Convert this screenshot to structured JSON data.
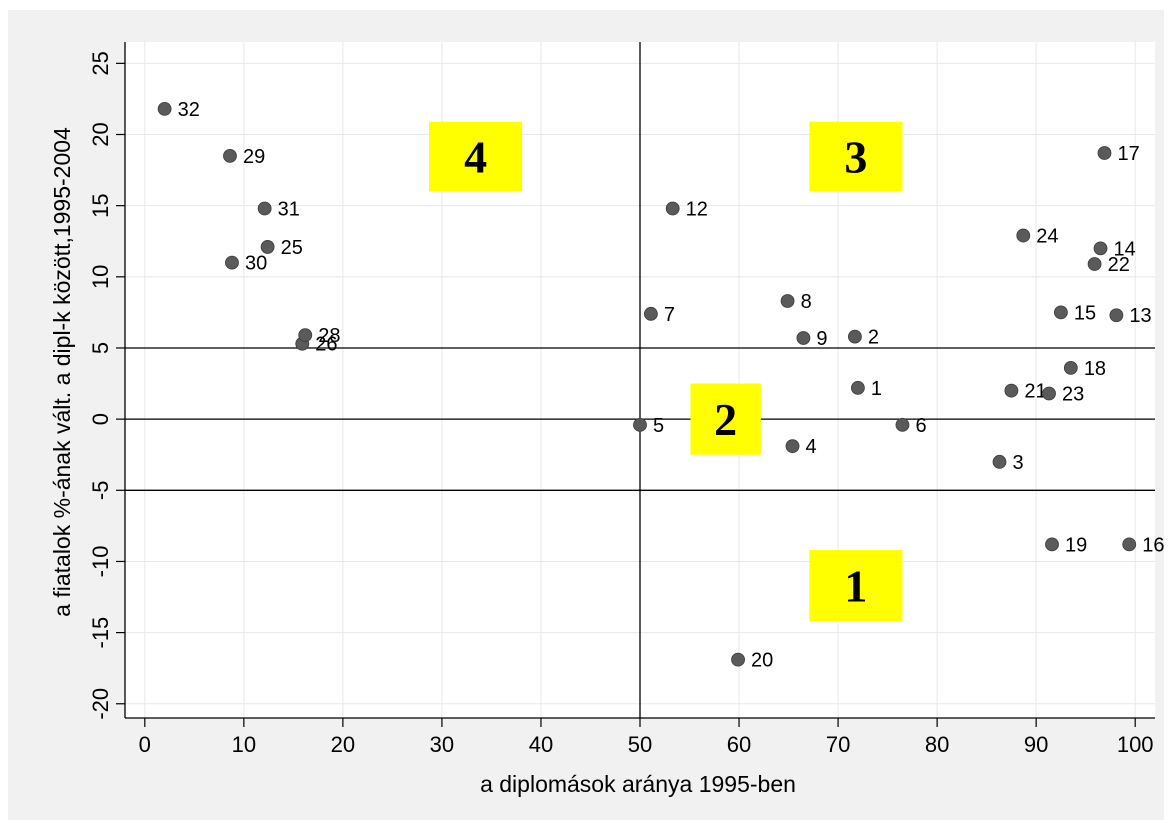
{
  "chart_data": {
    "type": "scatter",
    "title": "",
    "xlabel": "a diplomások aránya 1995-ben",
    "ylabel": "a fiatalok %-ának vált. a dipl-k között,1995-2004",
    "xlim": [
      -2,
      102
    ],
    "ylim": [
      -21,
      26.5
    ],
    "x_ticks": [
      0,
      10,
      20,
      30,
      40,
      50,
      60,
      70,
      80,
      90,
      100
    ],
    "y_ticks": [
      -20,
      -15,
      -10,
      -5,
      0,
      5,
      10,
      15,
      20,
      25
    ],
    "grid": true,
    "reference_lines": {
      "x": [
        50
      ],
      "y": [
        -5,
        0,
        5
      ]
    },
    "point_color": "#5a5a5a",
    "points": [
      {
        "label": "1",
        "x": 72,
        "y": 2.2
      },
      {
        "label": "2",
        "x": 71.7,
        "y": 5.8
      },
      {
        "label": "3",
        "x": 86.3,
        "y": -3
      },
      {
        "label": "4",
        "x": 65.4,
        "y": -1.9
      },
      {
        "label": "5",
        "x": 50,
        "y": -0.4
      },
      {
        "label": "6",
        "x": 76.5,
        "y": -0.4
      },
      {
        "label": "7",
        "x": 51.1,
        "y": 7.4
      },
      {
        "label": "8",
        "x": 64.9,
        "y": 8.3
      },
      {
        "label": "9",
        "x": 66.5,
        "y": 5.7
      },
      {
        "label": "12",
        "x": 53.3,
        "y": 14.8
      },
      {
        "label": "13",
        "x": 98.1,
        "y": 7.3
      },
      {
        "label": "14",
        "x": 96.5,
        "y": 12
      },
      {
        "label": "15",
        "x": 92.5,
        "y": 7.5
      },
      {
        "label": "16",
        "x": 99.4,
        "y": -8.8
      },
      {
        "label": "17",
        "x": 96.9,
        "y": 18.7
      },
      {
        "label": "18",
        "x": 93.5,
        "y": 3.6
      },
      {
        "label": "19",
        "x": 91.6,
        "y": -8.8
      },
      {
        "label": "20",
        "x": 59.9,
        "y": -16.9
      },
      {
        "label": "21",
        "x": 87.5,
        "y": 2
      },
      {
        "label": "22",
        "x": 95.9,
        "y": 10.9
      },
      {
        "label": "23",
        "x": 91.3,
        "y": 1.8
      },
      {
        "label": "24",
        "x": 88.7,
        "y": 12.9
      },
      {
        "label": "25",
        "x": 12.4,
        "y": 12.1
      },
      {
        "label": "26",
        "x": 15.9,
        "y": 5.3
      },
      {
        "label": "28",
        "x": 16.2,
        "y": 5.9
      },
      {
        "label": "29",
        "x": 8.6,
        "y": 18.5
      },
      {
        "label": "30",
        "x": 8.8,
        "y": 11
      },
      {
        "label": "31",
        "x": 12.1,
        "y": 14.8
      },
      {
        "label": "32",
        "x": 2,
        "y": 21.8
      }
    ],
    "quadrant_boxes": [
      {
        "text": "4",
        "color": "#ffff00",
        "x0": 28.7,
        "x1": 38.1,
        "y0": 16,
        "y1": 20.9
      },
      {
        "text": "3",
        "color": "#ffff00",
        "x0": 67.1,
        "x1": 76.5,
        "y0": 16,
        "y1": 20.9
      },
      {
        "text": "2",
        "color": "#ffff00",
        "x0": 55.1,
        "x1": 62.2,
        "y0": -2.5,
        "y1": 2.5
      },
      {
        "text": "1",
        "color": "#ffff00",
        "x0": 67.1,
        "x1": 76.5,
        "y0": -14.2,
        "y1": -9.2
      }
    ]
  }
}
